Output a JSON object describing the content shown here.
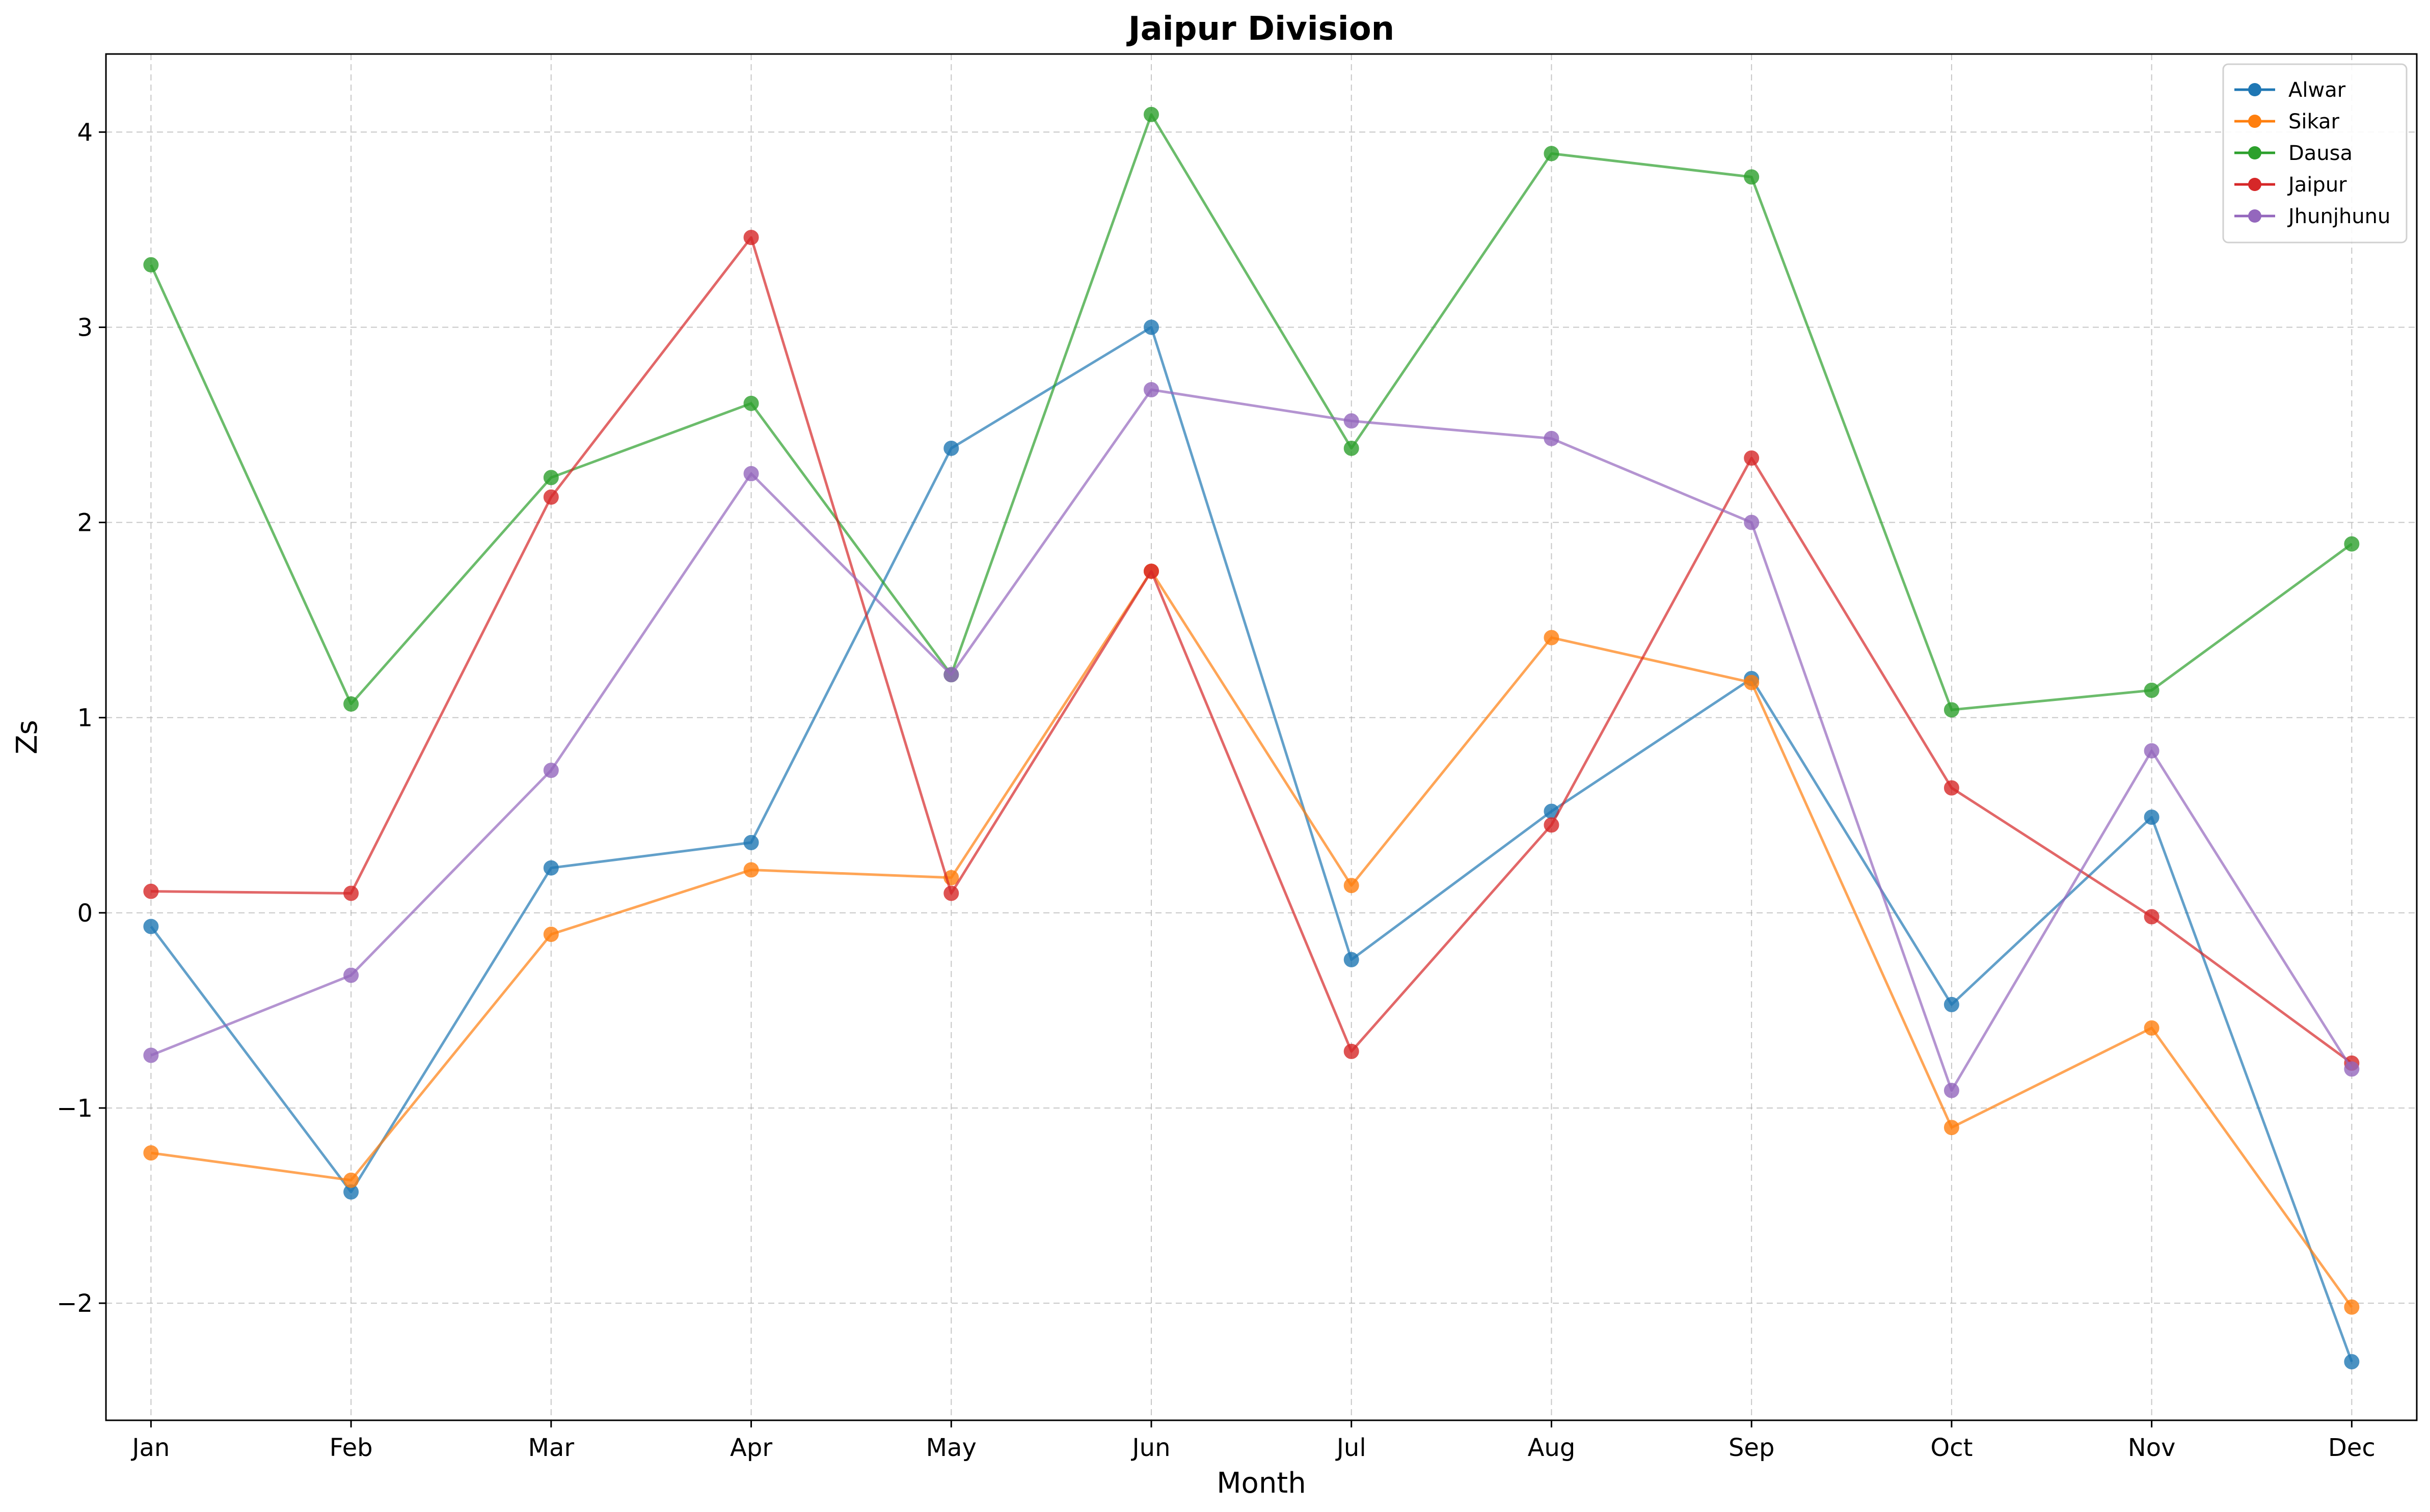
{
  "chart_data": {
    "type": "line",
    "title": "Jaipur Division",
    "xlabel": "Month",
    "ylabel": "Zs",
    "categories": [
      "Jan",
      "Feb",
      "Mar",
      "Apr",
      "May",
      "Jun",
      "Jul",
      "Aug",
      "Sep",
      "Oct",
      "Nov",
      "Dec"
    ],
    "ylim": [
      -2.6,
      4.4
    ],
    "yticks": [
      -2,
      -1,
      0,
      1,
      2,
      3,
      4
    ],
    "ytick_labels": [
      "−2",
      "−1",
      "0",
      "1",
      "2",
      "3",
      "4"
    ],
    "grid": true,
    "legend_position": "top-right",
    "series": [
      {
        "name": "Alwar",
        "color": "#1f77b4",
        "values": [
          -0.07,
          -1.43,
          0.23,
          0.36,
          2.38,
          3.0,
          -0.24,
          0.52,
          1.2,
          -0.47,
          0.49,
          -2.3
        ]
      },
      {
        "name": "Sikar",
        "color": "#ff7f0e",
        "values": [
          -1.23,
          -1.37,
          -0.11,
          0.22,
          0.18,
          1.75,
          0.14,
          1.41,
          1.18,
          -1.1,
          -0.59,
          -2.02
        ]
      },
      {
        "name": "Dausa",
        "color": "#2ca02c",
        "values": [
          3.32,
          1.07,
          2.23,
          2.61,
          1.22,
          4.09,
          2.38,
          3.89,
          3.77,
          1.04,
          1.14,
          1.89
        ]
      },
      {
        "name": "Jaipur",
        "color": "#d62728",
        "values": [
          0.11,
          0.1,
          2.13,
          3.46,
          0.1,
          1.75,
          -0.71,
          0.45,
          2.33,
          0.64,
          -0.02,
          -0.77
        ]
      },
      {
        "name": "Jhunjhunu",
        "color": "#9467bd",
        "values": [
          -0.73,
          -0.32,
          0.73,
          2.25,
          1.22,
          2.68,
          2.52,
          2.43,
          2.0,
          -0.91,
          0.83,
          -0.8
        ]
      }
    ]
  }
}
